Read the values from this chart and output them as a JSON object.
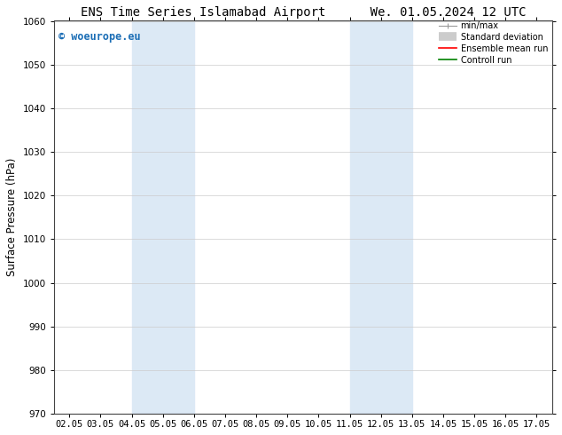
{
  "title_left": "ENS Time Series Islamabad Airport",
  "title_right": "We. 01.05.2024 12 UTC",
  "ylabel": "Surface Pressure (hPa)",
  "ylim": [
    970,
    1060
  ],
  "yticks": [
    970,
    980,
    990,
    1000,
    1010,
    1020,
    1030,
    1040,
    1050,
    1060
  ],
  "xlim": [
    0,
    15
  ],
  "xtick_labels": [
    "02.05",
    "03.05",
    "04.05",
    "05.05",
    "06.05",
    "07.05",
    "08.05",
    "09.05",
    "10.05",
    "11.05",
    "12.05",
    "13.05",
    "14.05",
    "15.05",
    "16.05",
    "17.05"
  ],
  "xtick_positions": [
    0,
    1,
    2,
    3,
    4,
    5,
    6,
    7,
    8,
    9,
    10,
    11,
    12,
    13,
    14,
    15
  ],
  "shaded_regions": [
    {
      "xmin": 2,
      "xmax": 4,
      "color": "#dce9f5"
    },
    {
      "xmin": 9,
      "xmax": 11,
      "color": "#dce9f5"
    }
  ],
  "watermark_text": "© woeurope.eu",
  "watermark_color": "#1a6db5",
  "legend_entries": [
    {
      "label": "min/max",
      "color": "#aaaaaa"
    },
    {
      "label": "Standard deviation",
      "color": "#cccccc"
    },
    {
      "label": "Ensemble mean run",
      "color": "red"
    },
    {
      "label": "Controll run",
      "color": "green"
    }
  ],
  "bg_color": "#ffffff",
  "grid_color": "#cccccc",
  "title_fontsize": 10,
  "tick_fontsize": 7.5,
  "ylabel_fontsize": 8.5
}
